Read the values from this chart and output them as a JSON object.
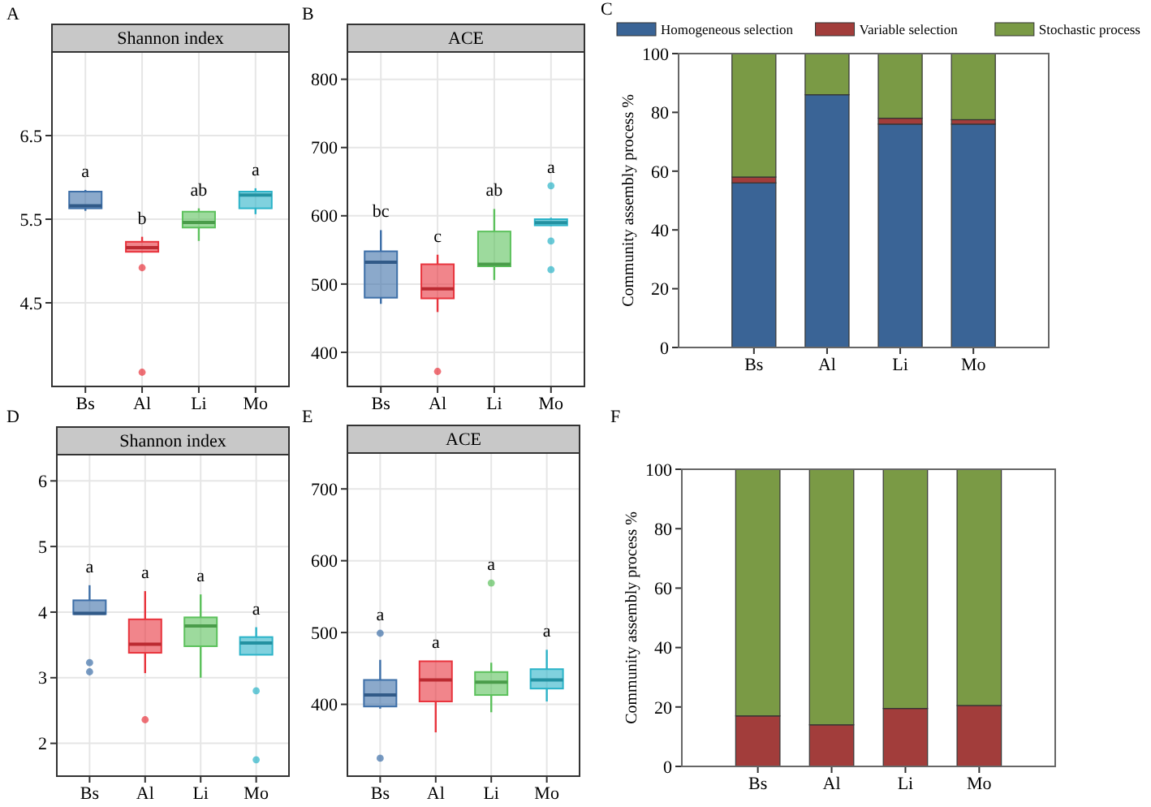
{
  "chart_data": [
    {
      "type": "box",
      "title": "Shannon index",
      "annotations": [
        "A",
        "a",
        "b",
        "ab",
        "a"
      ],
      "categories": [
        "Bs",
        "Al",
        "Li",
        "Mo"
      ],
      "colors": [
        "#3d6fa8",
        "#e8343d",
        "#5cc15c",
        "#2bb3c8"
      ],
      "ylim": [
        3.5,
        7.5
      ],
      "yticks": [
        4.5,
        5.5,
        6.5
      ],
      "grid": true,
      "boxes": [
        {
          "low": 5.6,
          "q1": 5.63,
          "median": 5.66,
          "q3": 5.83,
          "high": 5.85
        },
        {
          "low": 5.1,
          "q1": 5.11,
          "median": 5.16,
          "q3": 5.23,
          "high": 5.29,
          "outliers": [
            4.92,
            3.67
          ]
        },
        {
          "low": 5.24,
          "q1": 5.4,
          "median": 5.46,
          "q3": 5.59,
          "high": 5.63
        },
        {
          "low": 5.56,
          "q1": 5.63,
          "median": 5.79,
          "q3": 5.83,
          "high": 5.87
        }
      ]
    },
    {
      "type": "box",
      "title": "ACE",
      "annotations": [
        "B",
        "bc",
        "c",
        "ab",
        "a"
      ],
      "categories": [
        "Bs",
        "Al",
        "Li",
        "Mo"
      ],
      "colors": [
        "#3d6fa8",
        "#e8343d",
        "#5cc15c",
        "#2bb3c8"
      ],
      "ylim": [
        350,
        840
      ],
      "yticks": [
        400,
        500,
        600,
        700,
        800
      ],
      "grid": true,
      "boxes": [
        {
          "low": 471,
          "q1": 480,
          "median": 532,
          "q3": 548,
          "high": 579
        },
        {
          "low": 459,
          "q1": 479,
          "median": 493,
          "q3": 529,
          "high": 543,
          "outliers": [
            372
          ]
        },
        {
          "low": 506,
          "q1": 526,
          "median": 529,
          "q3": 577,
          "high": 610
        },
        {
          "low": 585,
          "q1": 586,
          "median": 590,
          "q3": 595,
          "high": 597,
          "outliers": [
            644,
            563,
            521
          ]
        }
      ]
    },
    {
      "type": "bar",
      "stacked": true,
      "annotations": [
        "C"
      ],
      "ylabel": "Community assembly process %",
      "categories": [
        "Bs",
        "Al",
        "Li",
        "Mo"
      ],
      "ylim": [
        0,
        100
      ],
      "yticks": [
        0,
        20,
        40,
        60,
        80,
        100
      ],
      "legend": "top",
      "series": [
        {
          "name": "Homogeneous selection",
          "color": "#3a6496",
          "values": [
            56,
            86,
            76,
            76
          ]
        },
        {
          "name": "Variable selection",
          "color": "#a23d3b",
          "values": [
            2,
            0,
            2,
            1.5
          ]
        },
        {
          "name": "Stochastic process",
          "color": "#7a9a45",
          "values": [
            42,
            14,
            22,
            22.5
          ]
        }
      ]
    },
    {
      "type": "box",
      "title": "Shannon index",
      "annotations": [
        "D",
        "a",
        "a",
        "a",
        "a"
      ],
      "categories": [
        "Bs",
        "Al",
        "Li",
        "Mo"
      ],
      "colors": [
        "#3d6fa8",
        "#e8343d",
        "#5cc15c",
        "#2bb3c8"
      ],
      "ylim": [
        1.5,
        6.4
      ],
      "yticks": [
        2,
        3,
        4,
        5,
        6
      ],
      "grid": true,
      "boxes": [
        {
          "low": 3.97,
          "q1": 3.97,
          "median": 3.98,
          "q3": 4.18,
          "high": 4.41,
          "outliers": [
            3.23,
            3.09
          ]
        },
        {
          "low": 3.07,
          "q1": 3.38,
          "median": 3.51,
          "q3": 3.89,
          "high": 4.32,
          "outliers": [
            2.36
          ]
        },
        {
          "low": 3.0,
          "q1": 3.48,
          "median": 3.79,
          "q3": 3.92,
          "high": 4.27
        },
        {
          "low": 3.35,
          "q1": 3.35,
          "median": 3.53,
          "q3": 3.62,
          "high": 3.77,
          "outliers": [
            2.8,
            1.75
          ]
        }
      ]
    },
    {
      "type": "box",
      "title": "ACE",
      "annotations": [
        "E",
        "a",
        "a",
        "a",
        "a"
      ],
      "categories": [
        "Bs",
        "Al",
        "Li",
        "Mo"
      ],
      "colors": [
        "#3d6fa8",
        "#e8343d",
        "#5cc15c",
        "#2bb3c8"
      ],
      "ylim": [
        300,
        750
      ],
      "yticks": [
        400,
        500,
        600,
        700
      ],
      "grid": true,
      "boxes": [
        {
          "low": 394,
          "q1": 397,
          "median": 413,
          "q3": 434,
          "high": 462,
          "outliers": [
            499,
            325
          ]
        },
        {
          "low": 361,
          "q1": 404,
          "median": 434,
          "q3": 460,
          "high": 460
        },
        {
          "low": 389,
          "q1": 413,
          "median": 431,
          "q3": 445,
          "high": 458,
          "outliers": [
            569
          ]
        },
        {
          "low": 404,
          "q1": 422,
          "median": 434,
          "q3": 449,
          "high": 476
        }
      ]
    },
    {
      "type": "bar",
      "stacked": true,
      "annotations": [
        "F"
      ],
      "ylabel": "Community assembly process %",
      "categories": [
        "Bs",
        "Al",
        "Li",
        "Mo"
      ],
      "ylim": [
        0,
        100
      ],
      "yticks": [
        0,
        20,
        40,
        60,
        80,
        100
      ],
      "series": [
        {
          "color": "#a23d3b",
          "values": [
            17,
            14,
            19.5,
            20.5
          ]
        },
        {
          "color": "#7a9a45",
          "values": [
            83,
            86,
            80.5,
            79.5
          ]
        }
      ]
    }
  ]
}
